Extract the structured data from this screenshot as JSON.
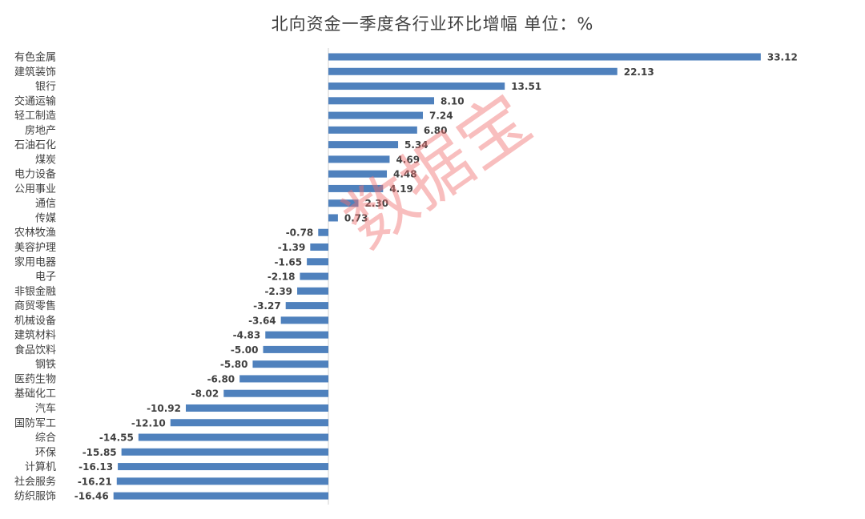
{
  "chart_data": {
    "type": "bar",
    "orientation": "horizontal",
    "title": "北向资金一季度各行业环比增幅  单位：%",
    "categories": [
      "有色金属",
      "建筑装饰",
      "银行",
      "交通运输",
      "轻工制造",
      "房地产",
      "石油石化",
      "煤炭",
      "电力设备",
      "公用事业",
      "通信",
      "传媒",
      "农林牧渔",
      "美容护理",
      "家用电器",
      "电子",
      "非银金融",
      "商贸零售",
      "机械设备",
      "建筑材料",
      "食品饮料",
      "钢铁",
      "医药生物",
      "基础化工",
      "汽车",
      "国防军工",
      "综合",
      "环保",
      "计算机",
      "社会服务",
      "纺织服饰"
    ],
    "values": [
      33.12,
      22.13,
      13.51,
      8.1,
      7.24,
      6.8,
      5.34,
      4.69,
      4.48,
      4.19,
      2.3,
      0.73,
      -0.78,
      -1.39,
      -1.65,
      -2.18,
      -2.39,
      -3.27,
      -3.64,
      -4.83,
      -5.0,
      -5.8,
      -6.8,
      -8.02,
      -10.92,
      -12.1,
      -14.55,
      -15.85,
      -16.13,
      -16.21,
      -16.46
    ],
    "value_labels": [
      "33.12",
      "22.13",
      "13.51",
      "8.10",
      "7.24",
      "6.80",
      "5.34",
      "4.69",
      "4.48",
      "4.19",
      "2.30",
      "0.73",
      "-0.78",
      "-1.39",
      "-1.65",
      "-2.18",
      "-2.39",
      "-3.27",
      "-3.64",
      "-4.83",
      "-5.00",
      "-5.80",
      "-6.80",
      "-8.02",
      "-10.92",
      "-12.10",
      "-14.55",
      "-15.85",
      "-16.13",
      "-16.21",
      "-16.46"
    ],
    "bar_color": "#4F81BD",
    "grid": false,
    "legend": "none"
  },
  "watermark": "数据宝"
}
